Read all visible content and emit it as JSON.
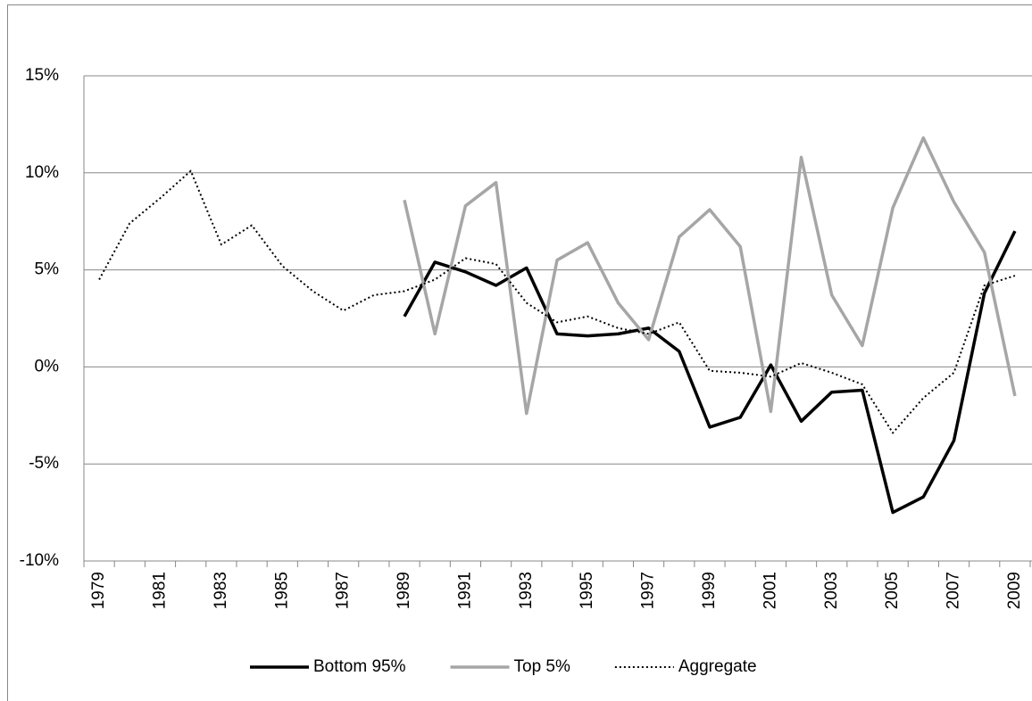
{
  "chart_data": {
    "type": "line",
    "categories": [
      "1979",
      null,
      "1981",
      null,
      "1983",
      null,
      "1985",
      null,
      "1987",
      null,
      "1989",
      null,
      "1991",
      null,
      "1993",
      null,
      "1995",
      null,
      "1997",
      null,
      "1999",
      null,
      "2001",
      null,
      "2003",
      null,
      "2005",
      null,
      "2007",
      null,
      "2009"
    ],
    "series": [
      {
        "name": "Bottom 95%",
        "color": "#000000",
        "width": 3.5,
        "dash": "none",
        "values": [
          null,
          null,
          null,
          null,
          null,
          null,
          null,
          null,
          null,
          null,
          2.6,
          5.4,
          4.9,
          4.2,
          5.1,
          1.7,
          1.6,
          1.7,
          2.0,
          0.8,
          -3.1,
          -2.6,
          0.1,
          -2.8,
          -1.3,
          -1.2,
          -7.5,
          -6.7,
          -3.8,
          3.8,
          7.0
        ]
      },
      {
        "name": "Top 5%",
        "color": "#a6a6a6",
        "width": 3.5,
        "dash": "none",
        "values": [
          null,
          null,
          null,
          null,
          null,
          null,
          null,
          null,
          null,
          null,
          8.6,
          1.7,
          8.3,
          9.5,
          -2.4,
          5.5,
          6.4,
          3.3,
          1.4,
          6.7,
          8.1,
          6.2,
          -2.3,
          10.8,
          3.7,
          1.1,
          8.2,
          11.8,
          8.5,
          5.9,
          -1.5
        ]
      },
      {
        "name": "Aggregate",
        "color": "#000000",
        "width": 2,
        "dash": "2,3",
        "values": [
          4.5,
          7.4,
          8.7,
          10.1,
          6.3,
          7.3,
          5.2,
          3.9,
          2.9,
          3.7,
          3.9,
          4.5,
          5.6,
          5.3,
          3.3,
          2.3,
          2.6,
          2.0,
          1.7,
          2.3,
          -0.2,
          -0.3,
          -0.5,
          0.2,
          -0.3,
          -0.9,
          -3.4,
          -1.6,
          -0.3,
          4.2,
          4.7
        ]
      }
    ],
    "ylim": [
      -10,
      15
    ],
    "yticks": [
      {
        "value": -10,
        "label": "-10%"
      },
      {
        "value": -5,
        "label": "-5%"
      },
      {
        "value": 0,
        "label": "0%"
      },
      {
        "value": 5,
        "label": "5%"
      },
      {
        "value": 10,
        "label": "10%"
      },
      {
        "value": 15,
        "label": "15%"
      }
    ],
    "grid": true,
    "legend": "bottom"
  }
}
